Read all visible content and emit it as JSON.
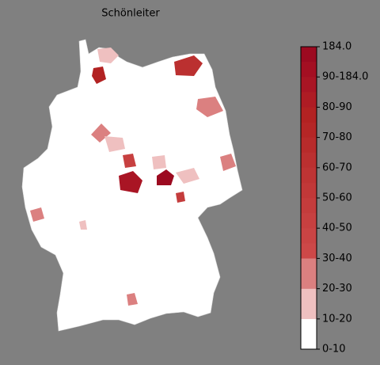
{
  "title": "Schönleiter",
  "colorbar": {
    "labels": [
      "0-10",
      "10-20",
      "20-30",
      "30-40",
      "40-50",
      "50-60",
      "60-70",
      "70-80",
      "80-90",
      "90-184.0",
      "184.0"
    ],
    "colors": [
      "#ffffff",
      "#efc0c0",
      "#db8080",
      "#cd4848",
      "#ca4444",
      "#c74040",
      "#c43c3c",
      "#c13838",
      "#be3434",
      "#bb3030",
      "#b82b2b",
      "#b52626",
      "#b22222",
      "#ae1c24",
      "#a91524",
      "#a40f22",
      "#9c0a20"
    ]
  }
}
